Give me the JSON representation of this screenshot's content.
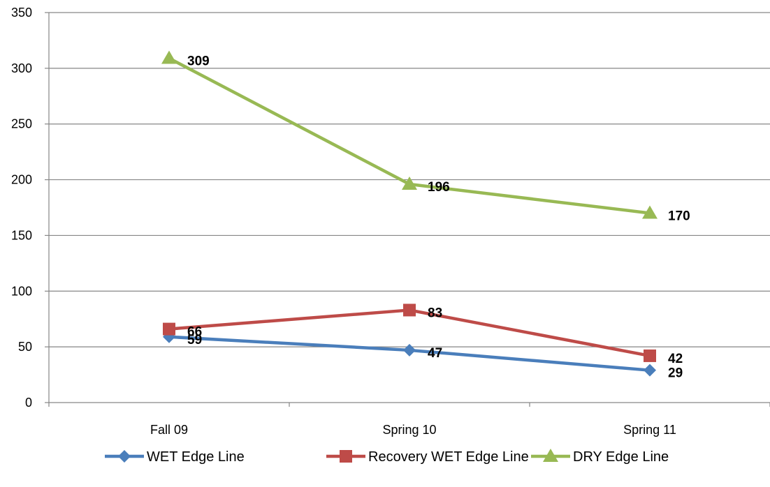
{
  "chart_data": {
    "type": "line",
    "categories": [
      "Fall 09",
      "Spring 10",
      "Spring 11"
    ],
    "series": [
      {
        "name": "WET Edge Line",
        "values": [
          59,
          47,
          29
        ],
        "color": "#4a7ebb",
        "marker": "diamond"
      },
      {
        "name": "Recovery WET Edge Line",
        "values": [
          66,
          83,
          42
        ],
        "color": "#be4b48",
        "marker": "square"
      },
      {
        "name": "DRY Edge Line",
        "values": [
          309,
          196,
          170
        ],
        "color": "#98b954",
        "marker": "triangle"
      }
    ],
    "ylim": [
      0,
      350
    ],
    "yticks": [
      0,
      50,
      100,
      150,
      200,
      250,
      300,
      350
    ],
    "grid": true,
    "data_labels": true,
    "legend": "bottom",
    "title": "",
    "xlabel": "",
    "ylabel": ""
  }
}
